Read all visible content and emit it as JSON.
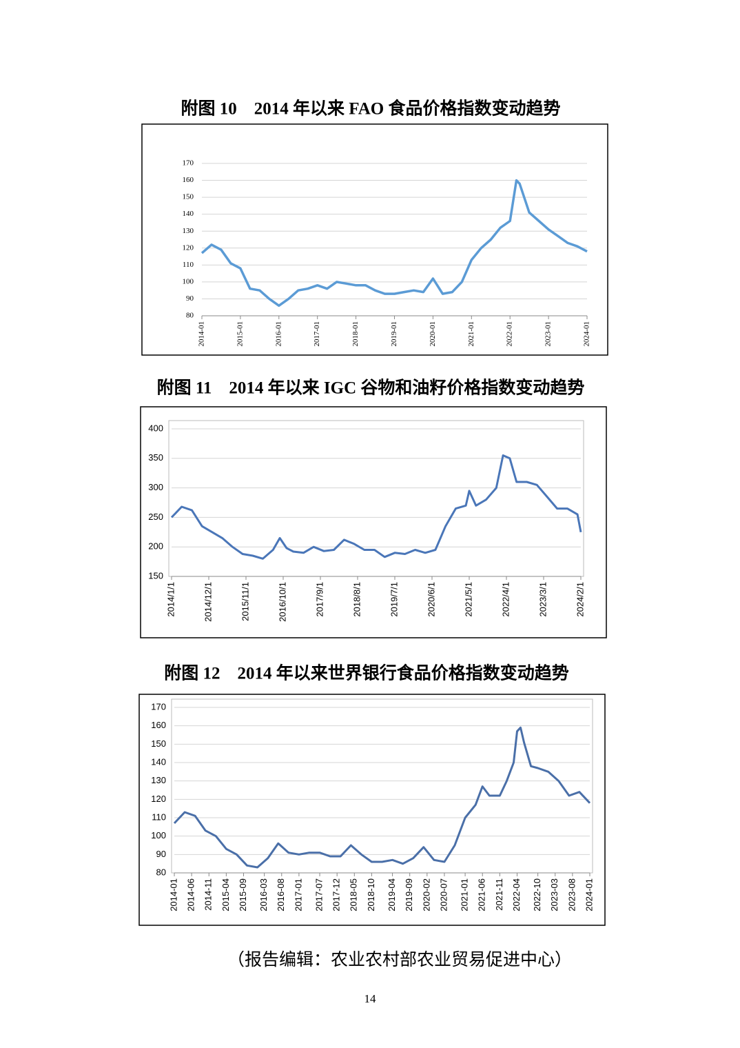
{
  "chart_data": [
    {
      "type": "line",
      "title": "附图 10　2014 年以来 FAO 食品价格指数变动趋势",
      "color": "#5b9bd5",
      "grid": true,
      "x": [
        "2014-01",
        "2014-04",
        "2014-07",
        "2014-10",
        "2015-01",
        "2015-04",
        "2015-07",
        "2015-10",
        "2016-01",
        "2016-04",
        "2016-07",
        "2016-10",
        "2017-01",
        "2017-04",
        "2017-07",
        "2017-10",
        "2018-01",
        "2018-04",
        "2018-07",
        "2018-10",
        "2019-01",
        "2019-04",
        "2019-07",
        "2019-10",
        "2020-01",
        "2020-04",
        "2020-07",
        "2020-10",
        "2021-01",
        "2021-04",
        "2021-07",
        "2021-10",
        "2022-01",
        "2022-03",
        "2022-04",
        "2022-07",
        "2022-10",
        "2023-01",
        "2023-04",
        "2023-07",
        "2023-10",
        "2024-01"
      ],
      "values": [
        117,
        122,
        119,
        111,
        108,
        96,
        95,
        90,
        86,
        90,
        95,
        96,
        98,
        96,
        100,
        99,
        98,
        98,
        95,
        93,
        93,
        94,
        95,
        94,
        102,
        93,
        94,
        100,
        113,
        120,
        125,
        132,
        136,
        160,
        158,
        141,
        136,
        131,
        127,
        123,
        121,
        118
      ],
      "xlim": [
        "2014-01",
        "2024-01"
      ],
      "xticks": [
        "2014-01",
        "2015-01",
        "2016-01",
        "2017-01",
        "2018-01",
        "2019-01",
        "2020-01",
        "2021-01",
        "2022-01",
        "2023-01",
        "2024-01"
      ],
      "ylim": [
        80,
        170
      ],
      "yticks": [
        80,
        90,
        100,
        110,
        120,
        130,
        140,
        150,
        160,
        170
      ]
    },
    {
      "type": "line",
      "title": "附图 11　2014 年以来 IGC 谷物和油籽价格指数变动趋势",
      "color": "#4a76b8",
      "grid": true,
      "x": [
        "2014/1/1",
        "2014/4/1",
        "2014/7/1",
        "2014/10/1",
        "2015/1/1",
        "2015/4/1",
        "2015/7/1",
        "2015/10/1",
        "2016/1/1",
        "2016/4/1",
        "2016/7/1",
        "2016/9/1",
        "2016/11/1",
        "2017/1/1",
        "2017/4/1",
        "2017/7/1",
        "2017/10/1",
        "2018/1/1",
        "2018/4/1",
        "2018/7/1",
        "2018/10/1",
        "2019/1/1",
        "2019/4/1",
        "2019/7/1",
        "2019/10/1",
        "2020/1/1",
        "2020/4/1",
        "2020/7/1",
        "2020/10/1",
        "2021/1/1",
        "2021/4/1",
        "2021/5/1",
        "2021/7/1",
        "2021/10/1",
        "2022/1/1",
        "2022/3/1",
        "2022/5/1",
        "2022/7/1",
        "2022/10/1",
        "2023/1/1",
        "2023/4/1",
        "2023/7/1",
        "2023/10/1",
        "2024/1/1",
        "2024/2/1"
      ],
      "values": [
        250,
        268,
        262,
        235,
        225,
        215,
        200,
        188,
        185,
        180,
        195,
        215,
        198,
        192,
        190,
        200,
        193,
        195,
        212,
        205,
        195,
        195,
        183,
        190,
        188,
        195,
        190,
        195,
        235,
        265,
        270,
        295,
        270,
        280,
        300,
        355,
        350,
        310,
        310,
        305,
        285,
        265,
        265,
        255,
        225
      ],
      "xlim": [
        "2014/1/1",
        "2024/2/1"
      ],
      "xticks": [
        "2014/1/1",
        "2014/12/1",
        "2015/11/1",
        "2016/10/1",
        "2017/9/1",
        "2018/8/1",
        "2019/7/1",
        "2020/6/1",
        "2021/5/1",
        "2022/4/1",
        "2023/3/1",
        "2024/2/1"
      ],
      "ylim": [
        150,
        400
      ],
      "yticks": [
        150,
        200,
        250,
        300,
        350,
        400
      ]
    },
    {
      "type": "line",
      "title": "附图 12　2014 年以来世界银行食品价格指数变动趋势",
      "color": "#4a6fa8",
      "grid": true,
      "x": [
        "2014-01",
        "2014-04",
        "2014-07",
        "2014-10",
        "2015-01",
        "2015-04",
        "2015-07",
        "2015-10",
        "2016-01",
        "2016-04",
        "2016-07",
        "2016-10",
        "2017-01",
        "2017-04",
        "2017-07",
        "2017-10",
        "2018-01",
        "2018-04",
        "2018-07",
        "2018-10",
        "2019-01",
        "2019-04",
        "2019-07",
        "2019-10",
        "2020-01",
        "2020-04",
        "2020-07",
        "2020-10",
        "2021-01",
        "2021-04",
        "2021-06",
        "2021-08",
        "2021-11",
        "2022-01",
        "2022-03",
        "2022-04",
        "2022-05",
        "2022-06",
        "2022-08",
        "2022-10",
        "2023-01",
        "2023-04",
        "2023-07",
        "2023-10",
        "2024-01"
      ],
      "values": [
        107,
        113,
        111,
        103,
        100,
        93,
        90,
        84,
        83,
        88,
        96,
        91,
        90,
        91,
        91,
        89,
        89,
        95,
        90,
        86,
        86,
        87,
        85,
        88,
        94,
        87,
        86,
        95,
        110,
        117,
        127,
        122,
        122,
        130,
        140,
        157,
        159,
        151,
        138,
        137,
        135,
        130,
        122,
        124,
        118
      ],
      "xlim": [
        "2014-01",
        "2024-01"
      ],
      "xticks": [
        "2014-01",
        "2014-06",
        "2014-11",
        "2015-04",
        "2015-09",
        "2016-03",
        "2016-08",
        "2017-01",
        "2017-07",
        "2017-12",
        "2018-05",
        "2018-10",
        "2019-04",
        "2019-09",
        "2020-02",
        "2020-07",
        "2021-01",
        "2021-06",
        "2021-11",
        "2022-04",
        "2022-10",
        "2023-03",
        "2023-08",
        "2024-01"
      ],
      "ylim": [
        80,
        170
      ],
      "yticks": [
        80,
        90,
        100,
        110,
        120,
        130,
        140,
        150,
        160,
        170
      ]
    }
  ],
  "footer": "（报告编辑：农业农村部农业贸易促进中心）",
  "page_number": "14"
}
